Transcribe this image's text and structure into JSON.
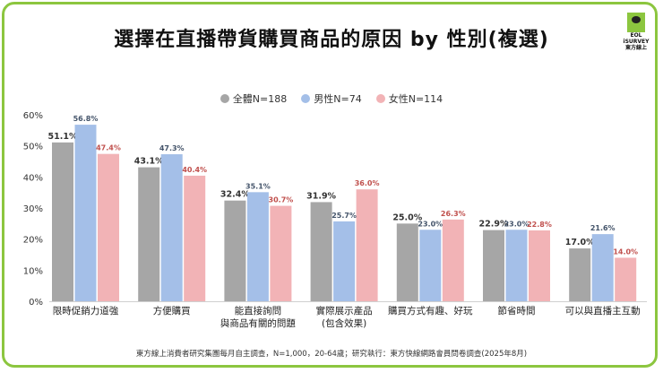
{
  "title": "選擇在直播帶貨購買商品的原因 by 性別(複選)",
  "logo": {
    "text": "EOL iSURVEY 東方線上"
  },
  "footnote": "東方線上消費者研究集團每月自主調查，N=1,000，20-64歲；研究執行：東方快線網路會員問卷調查(2025年8月)",
  "chart_data": {
    "type": "bar",
    "title": "選擇在直播帶貨購買商品的原因 by 性別(複選)",
    "categories": [
      "限時促銷力道強",
      "方便購買",
      "能直接詢問\n與商品有關的問題",
      "實際展示產品\n(包含效果)",
      "購買方式有趣、好玩",
      "節省時間",
      "可以與直播主互動"
    ],
    "series": [
      {
        "name": "全體N=188",
        "color": "#a6a6a6",
        "label_color": "#333333",
        "values": [
          51.1,
          43.1,
          32.4,
          31.9,
          25.0,
          22.9,
          17.0
        ]
      },
      {
        "name": "男性N=74",
        "color": "#a4bfe8",
        "label_color": "#44546a",
        "values": [
          56.8,
          47.3,
          35.1,
          25.7,
          23.0,
          23.0,
          21.6
        ]
      },
      {
        "name": "女性N=114",
        "color": "#f2b3b6",
        "label_color": "#c0504d",
        "values": [
          47.4,
          40.4,
          30.7,
          36.0,
          26.3,
          22.8,
          14.0
        ]
      }
    ],
    "ylim": [
      0,
      60
    ],
    "yticks": [
      "0%",
      "10%",
      "20%",
      "30%",
      "40%",
      "50%",
      "60%"
    ],
    "grid": false,
    "legend": "top-center",
    "value_format": "percent-1-decimal"
  }
}
